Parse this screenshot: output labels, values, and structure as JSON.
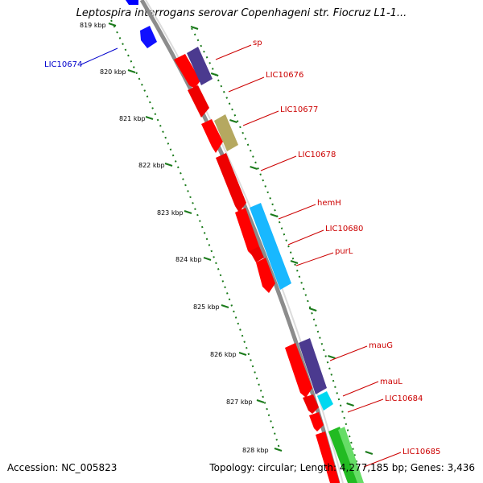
{
  "title": "Leptospira interrogans serovar Copenhageni str. Fiocruz L1-1...",
  "footer": {
    "accession": "Accession: NC_005823",
    "summary": "Topology: circular; Length: 4,277,185 bp; Genes: 3,436"
  },
  "colors": {
    "backbone": "#8c8c8c",
    "forward_cds": "#ff0000",
    "other_cds": "#0000ff",
    "scale": "#1a7a1a",
    "label_red": "#cc0000",
    "label_blue": "#0000cc"
  },
  "scale_ticks": [
    "819 kbp",
    "820 kbp",
    "821 kbp",
    "822 kbp",
    "823 kbp",
    "824 kbp",
    "825 kbp",
    "826 kbp",
    "827 kbp",
    "828 kbp"
  ],
  "gene_labels": [
    {
      "text": "LIC10674",
      "color": "blue"
    },
    {
      "text": "sp",
      "color": "red"
    },
    {
      "text": "LIC10676",
      "color": "red"
    },
    {
      "text": "LIC10677",
      "color": "red"
    },
    {
      "text": "LIC10678",
      "color": "red"
    },
    {
      "text": "hemH",
      "color": "red"
    },
    {
      "text": "LIC10680",
      "color": "red"
    },
    {
      "text": "purL",
      "color": "red"
    },
    {
      "text": "mauG",
      "color": "red"
    },
    {
      "text": "mauL",
      "color": "red"
    },
    {
      "text": "LIC10684",
      "color": "red"
    },
    {
      "text": "LIC10685",
      "color": "red"
    }
  ]
}
